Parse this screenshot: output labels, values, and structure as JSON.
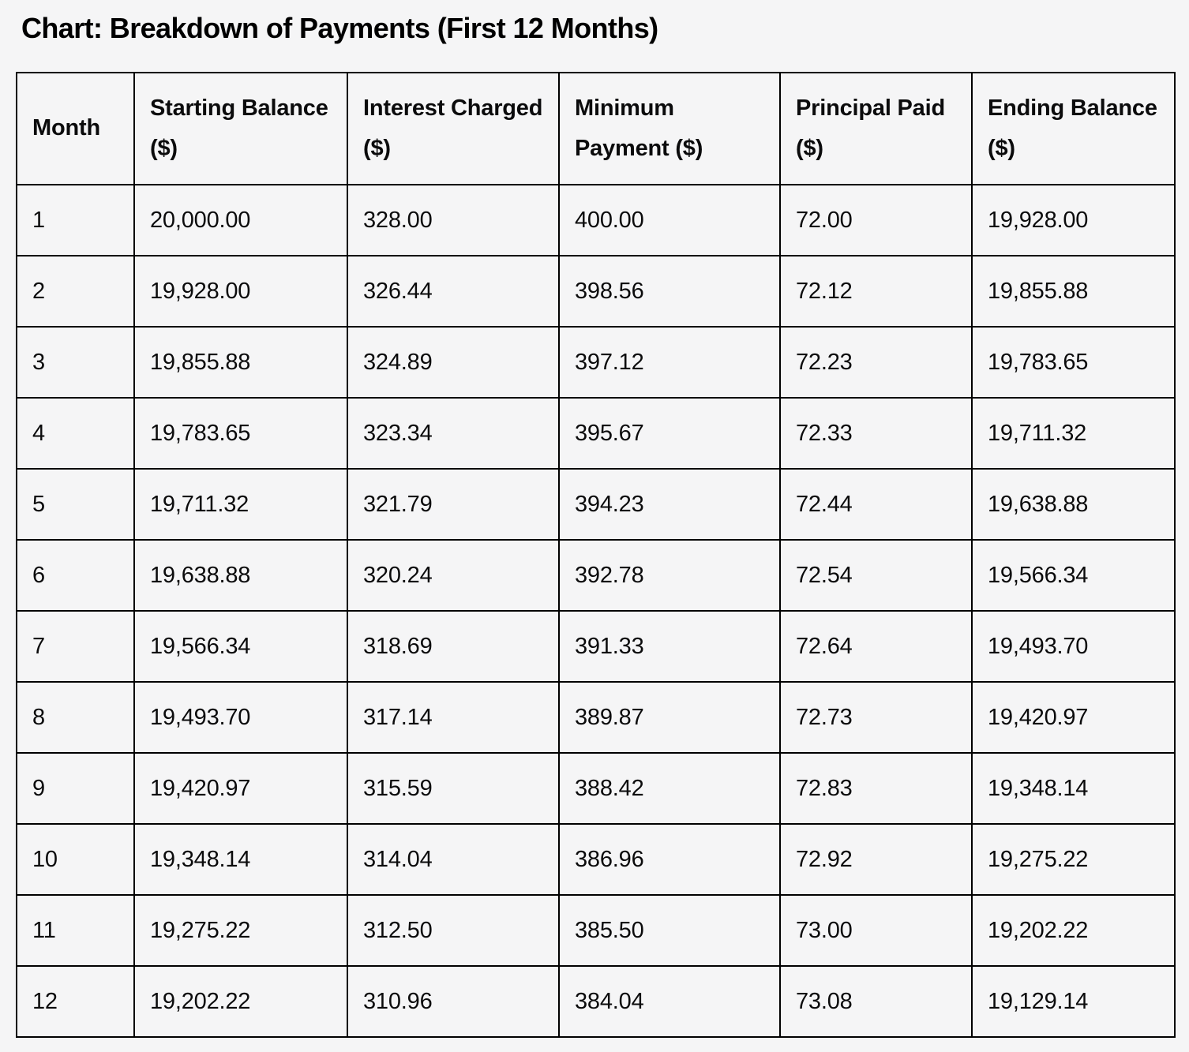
{
  "page": {
    "title": "Chart: Breakdown of Payments (First 12 Months)"
  },
  "table": {
    "headers": [
      "Month",
      "Starting Balance ($)",
      "Interest Charged ($)",
      "Minimum Payment ($)",
      "Principal Paid ($)",
      "Ending Balance ($)"
    ],
    "column_keys": [
      "month",
      "starting-balance",
      "interest-charged",
      "minimum-payment",
      "principal-paid",
      "ending-balance"
    ],
    "rows": [
      [
        "1",
        "20,000.00",
        "328.00",
        "400.00",
        "72.00",
        "19,928.00"
      ],
      [
        "2",
        "19,928.00",
        "326.44",
        "398.56",
        "72.12",
        "19,855.88"
      ],
      [
        "3",
        "19,855.88",
        "324.89",
        "397.12",
        "72.23",
        "19,783.65"
      ],
      [
        "4",
        "19,783.65",
        "323.34",
        "395.67",
        "72.33",
        "19,711.32"
      ],
      [
        "5",
        "19,711.32",
        "321.79",
        "394.23",
        "72.44",
        "19,638.88"
      ],
      [
        "6",
        "19,638.88",
        "320.24",
        "392.78",
        "72.54",
        "19,566.34"
      ],
      [
        "7",
        "19,566.34",
        "318.69",
        "391.33",
        "72.64",
        "19,493.70"
      ],
      [
        "8",
        "19,493.70",
        "317.14",
        "389.87",
        "72.73",
        "19,420.97"
      ],
      [
        "9",
        "19,420.97",
        "315.59",
        "388.42",
        "72.83",
        "19,348.14"
      ],
      [
        "10",
        "19,348.14",
        "314.04",
        "386.96",
        "72.92",
        "19,275.22"
      ],
      [
        "11",
        "19,275.22",
        "312.50",
        "385.50",
        "73.00",
        "19,202.22"
      ],
      [
        "12",
        "19,202.22",
        "310.96",
        "384.04",
        "73.08",
        "19,129.14"
      ]
    ]
  },
  "chart_data": {
    "type": "table",
    "title": "Chart: Breakdown of Payments (First 12 Months)",
    "columns": [
      "Month",
      "Starting Balance ($)",
      "Interest Charged ($)",
      "Minimum Payment ($)",
      "Principal Paid ($)",
      "Ending Balance ($)"
    ],
    "categories": [
      1,
      2,
      3,
      4,
      5,
      6,
      7,
      8,
      9,
      10,
      11,
      12
    ],
    "series": [
      {
        "name": "Starting Balance ($)",
        "values": [
          20000.0,
          19928.0,
          19855.88,
          19783.65,
          19711.32,
          19638.88,
          19566.34,
          19493.7,
          19420.97,
          19348.14,
          19275.22,
          19202.22
        ]
      },
      {
        "name": "Interest Charged ($)",
        "values": [
          328.0,
          326.44,
          324.89,
          323.34,
          321.79,
          320.24,
          318.69,
          317.14,
          315.59,
          314.04,
          312.5,
          310.96
        ]
      },
      {
        "name": "Minimum Payment ($)",
        "values": [
          400.0,
          398.56,
          397.12,
          395.67,
          394.23,
          392.78,
          391.33,
          389.87,
          388.42,
          386.96,
          385.5,
          384.04
        ]
      },
      {
        "name": "Principal Paid ($)",
        "values": [
          72.0,
          72.12,
          72.23,
          72.33,
          72.44,
          72.54,
          72.64,
          72.73,
          72.83,
          72.92,
          73.0,
          73.08
        ]
      },
      {
        "name": "Ending Balance ($)",
        "values": [
          19928.0,
          19855.88,
          19783.65,
          19711.32,
          19638.88,
          19566.34,
          19493.7,
          19420.97,
          19348.14,
          19275.22,
          19202.22,
          19129.14
        ]
      }
    ],
    "layout": {
      "grid": "all-borders",
      "background": "#f5f5f6",
      "border_color": "#000000"
    }
  },
  "colors": {
    "background": "#f5f5f6",
    "text": "#0b0b0c",
    "border": "#000000"
  }
}
